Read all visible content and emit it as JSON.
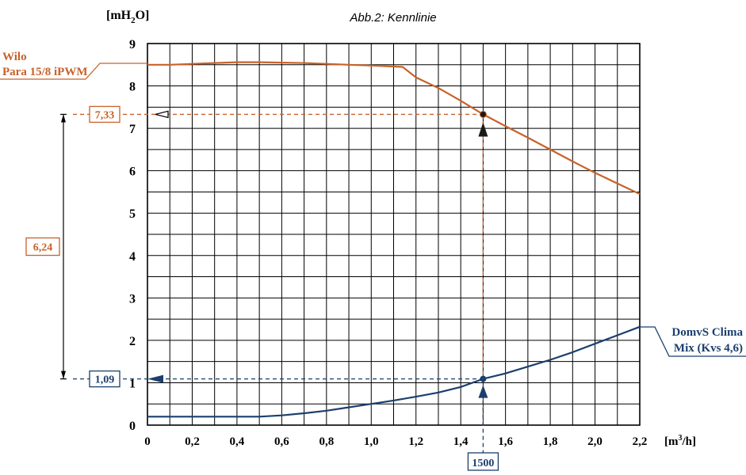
{
  "chart_data": {
    "type": "line",
    "title": "Abb.2: Kennlinie",
    "ylabel_parts": [
      "[mH",
      "2",
      "O]"
    ],
    "xlabel_parts": [
      "[m",
      "3",
      "/h]"
    ],
    "xlim": [
      0,
      2.2
    ],
    "ylim": [
      0,
      9
    ],
    "x_ticks": [
      "0",
      "0,2",
      "0,4",
      "0,6",
      "0,8",
      "1,0",
      "1,2",
      "1,4",
      "1,6",
      "1,8",
      "2,0",
      "2,2"
    ],
    "y_ticks": [
      "0",
      "1",
      "2",
      "3",
      "4",
      "5",
      "6",
      "7",
      "8",
      "9"
    ],
    "grid": true,
    "series": [
      {
        "name_lines": [
          "Wilo",
          "Para 15/8 iPWM"
        ],
        "color": "#c8622a",
        "x": [
          0,
          0.1,
          0.2,
          0.3,
          0.4,
          0.5,
          0.6,
          0.7,
          0.8,
          0.9,
          1.0,
          1.14,
          1.2,
          1.3,
          1.4,
          1.5,
          1.6,
          1.7,
          1.8,
          1.9,
          2.0,
          2.1,
          2.2
        ],
        "y": [
          8.5,
          8.5,
          8.52,
          8.54,
          8.56,
          8.56,
          8.55,
          8.54,
          8.52,
          8.5,
          8.48,
          8.45,
          8.2,
          7.95,
          7.65,
          7.33,
          7.05,
          6.78,
          6.5,
          6.22,
          5.95,
          5.7,
          5.45
        ]
      },
      {
        "name_lines": [
          "DomvS Clima",
          "Mix (Kvs 4,6)"
        ],
        "color": "#1b3f6e",
        "x": [
          0,
          0.2,
          0.4,
          0.5,
          0.6,
          0.7,
          0.8,
          0.9,
          1.0,
          1.1,
          1.2,
          1.3,
          1.4,
          1.5,
          1.6,
          1.7,
          1.8,
          1.9,
          2.0,
          2.1,
          2.2
        ],
        "y": [
          0.2,
          0.2,
          0.2,
          0.2,
          0.23,
          0.28,
          0.34,
          0.42,
          0.5,
          0.58,
          0.67,
          0.77,
          0.9,
          1.09,
          1.22,
          1.38,
          1.54,
          1.72,
          1.92,
          2.12,
          2.32
        ]
      }
    ],
    "annotations": {
      "wilo_value": "7,33",
      "domvs_value": "1,09",
      "difference": "6,24",
      "flow": "1500",
      "marker_x": 1.5,
      "wilo_y": 7.33,
      "domvs_y": 1.09
    }
  }
}
